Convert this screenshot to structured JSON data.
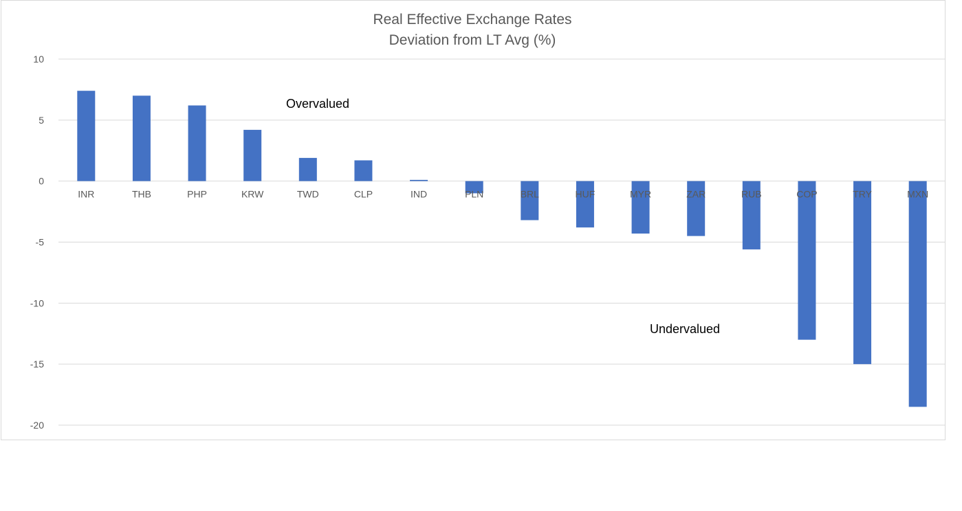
{
  "chart_data": {
    "type": "bar",
    "title": "Real Effective Exchange Rates",
    "subtitle": "Deviation from LT Avg (%)",
    "xlabel": "",
    "ylabel": "",
    "ylim": [
      -20,
      10
    ],
    "yticks": [
      10,
      5,
      0,
      -5,
      -10,
      -15,
      -20
    ],
    "grid": true,
    "categories": [
      "INR",
      "THB",
      "PHP",
      "KRW",
      "TWD",
      "CLP",
      "IND",
      "PLN",
      "BRL",
      "HUF",
      "MYR",
      "ZAR",
      "RUB",
      "COP",
      "TRY",
      "MXN"
    ],
    "values": [
      7.4,
      7.0,
      6.2,
      4.2,
      1.9,
      1.7,
      0.1,
      -1.0,
      -3.2,
      -3.8,
      -4.3,
      -4.5,
      -5.6,
      -13.0,
      -15.0,
      -18.5
    ],
    "annotations": [
      {
        "text": "Overvalued"
      },
      {
        "text": "Undervalued"
      }
    ],
    "colors": {
      "bar": "#4472C4",
      "grid": "#d9d9d9",
      "text": "#595959"
    }
  }
}
